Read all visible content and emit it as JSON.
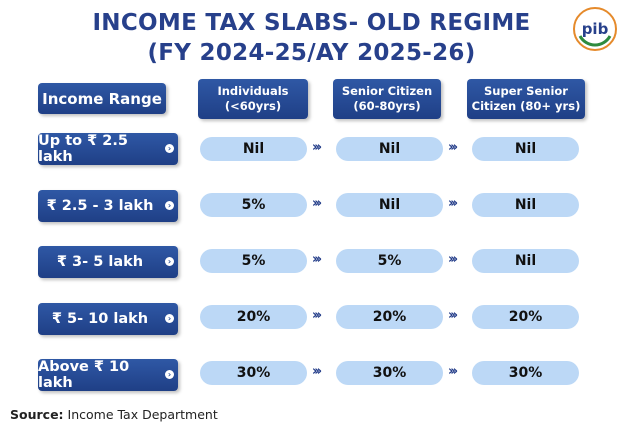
{
  "title_line1": "INCOME TAX SLABS- OLD REGIME",
  "title_line2": "(FY 2024-25/AY 2025-26)",
  "logo_text": "pib",
  "header": {
    "range": "Income Range",
    "col1_l1": "Individuals",
    "col1_l2": "(<60yrs)",
    "col2_l1": "Senior Citizen",
    "col2_l2": "(60-80yrs)",
    "col3_l1": "Super Senior",
    "col3_l2": "Citizen (80+ yrs)"
  },
  "rows": [
    {
      "range": "Up to ₹ 2.5 lakh",
      "individuals": "Nil",
      "senior": "Nil",
      "super_senior": "Nil"
    },
    {
      "range": "₹ 2.5 - 3 lakh",
      "individuals": "5%",
      "senior": "Nil",
      "super_senior": "Nil"
    },
    {
      "range": "₹ 3- 5 lakh",
      "individuals": "5%",
      "senior": "5%",
      "super_senior": "Nil"
    },
    {
      "range": "₹ 5- 10 lakh",
      "individuals": "20%",
      "senior": "20%",
      "super_senior": "20%"
    },
    {
      "range": "Above ₹ 10 lakh",
      "individuals": "30%",
      "senior": "30%",
      "super_senior": "30%"
    }
  ],
  "arrow_glyph": "›››",
  "source_label": "Source:",
  "source_text": " Income Tax Department",
  "colors": {
    "primary": "#27408b",
    "pill": "#bcd8f6"
  }
}
